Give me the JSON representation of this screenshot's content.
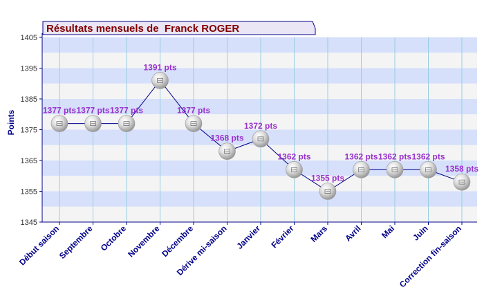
{
  "chart_data": {
    "type": "line",
    "title": "Résultats mensuels de  Franck ROGER",
    "ylabel": "Points",
    "xlabel": "",
    "ylim": [
      1345,
      1405
    ],
    "yticks": [
      1345,
      1355,
      1365,
      1375,
      1385,
      1395,
      1405
    ],
    "categories": [
      "Début saison",
      "Septembre",
      "Octobre",
      "Novembre",
      "Décembre",
      "Dérive mi-saison",
      "Janvier",
      "Février",
      "Mars",
      "Avril",
      "Mai",
      "Juin",
      "Correction fin-saison"
    ],
    "series": [
      {
        "values": [
          1377,
          1377,
          1377,
          1391,
          1377,
          1368,
          1372,
          1362,
          1355,
          1362,
          1362,
          1362,
          1358
        ],
        "labels": [
          "1377 pts",
          "1377 pts",
          "1377 pts",
          "1391 pts",
          "1377 pts",
          "1368 pts",
          "1372 pts",
          "1362 pts",
          "1355 pts",
          "1362 pts",
          "1362 pts",
          "1362 pts",
          "1358 pts"
        ]
      }
    ],
    "grid": true,
    "legend": "none"
  },
  "colors": {
    "band_blue": "#d6e0fb",
    "band_gray": "#f4f4f4",
    "line": "#00008b",
    "axis_text": "#00008b",
    "label_text": "#9932cc",
    "title_text": "#800000",
    "title_bg": "#ebe6f5",
    "title_border": "#00008b",
    "vgrid": "#99cce0"
  }
}
